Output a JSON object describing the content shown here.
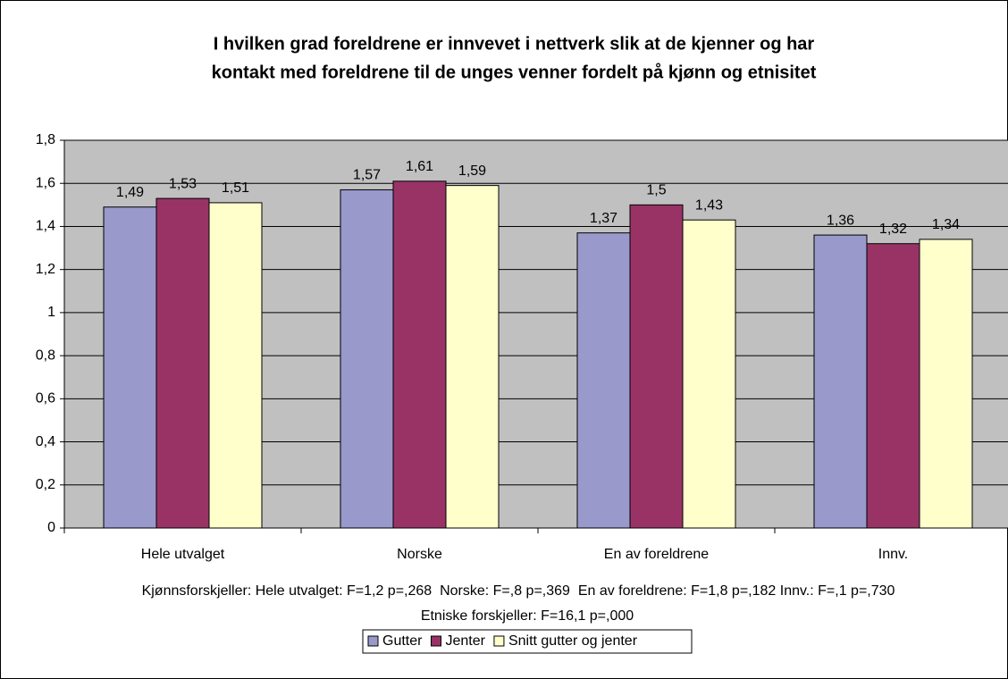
{
  "chart_data": {
    "type": "bar",
    "title": [
      "I hvilken grad foreldrene er innvevet i nettverk slik at de kjenner og har",
      "kontakt med foreldrene til de unges venner fordelt på kjønn og etnisitet"
    ],
    "categories": [
      "Hele utvalget",
      "Norske",
      "En av foreldrene",
      "Innv."
    ],
    "series": [
      {
        "name": "Gutter",
        "color": "#9999cc",
        "values": [
          1.49,
          1.57,
          1.37,
          1.36
        ],
        "value_labels": [
          "1,49",
          "1,57",
          "1,37",
          "1,36"
        ]
      },
      {
        "name": "Jenter",
        "color": "#993366",
        "values": [
          1.53,
          1.61,
          1.5,
          1.32
        ],
        "value_labels": [
          "1,53",
          "1,61",
          "1,5",
          "1,32"
        ]
      },
      {
        "name": "Snitt gutter og jenter",
        "color": "#ffffcc",
        "values": [
          1.51,
          1.59,
          1.43,
          1.34
        ],
        "value_labels": [
          "1,51",
          "1,59",
          "1,43",
          "1,34"
        ]
      }
    ],
    "ylim": [
      0,
      1.8
    ],
    "yticks": [
      0,
      {
        "value": 0.2,
        "label": "0,2"
      },
      {
        "value": 0.4,
        "label": "0,4"
      },
      {
        "value": 0.6,
        "label": "0,6"
      },
      {
        "value": 0.8,
        "label": "0,8"
      },
      1,
      {
        "value": 1.2,
        "label": "1,2"
      },
      {
        "value": 1.4,
        "label": "1,4"
      },
      {
        "value": 1.6,
        "label": "1,6"
      },
      {
        "value": 1.8,
        "label": "1,8"
      }
    ],
    "grid": true,
    "legend": "bottom",
    "notes": [
      "Kjønnsforskjeller: Hele utvalget: F=1,2 p=,268  Norske: F=,8 p=,369  En av foreldrene: F=1,8 p=,182 Innv.: F=,1 p=,730",
      "Etniske forskjeller: F=16,1 p=,000"
    ]
  }
}
